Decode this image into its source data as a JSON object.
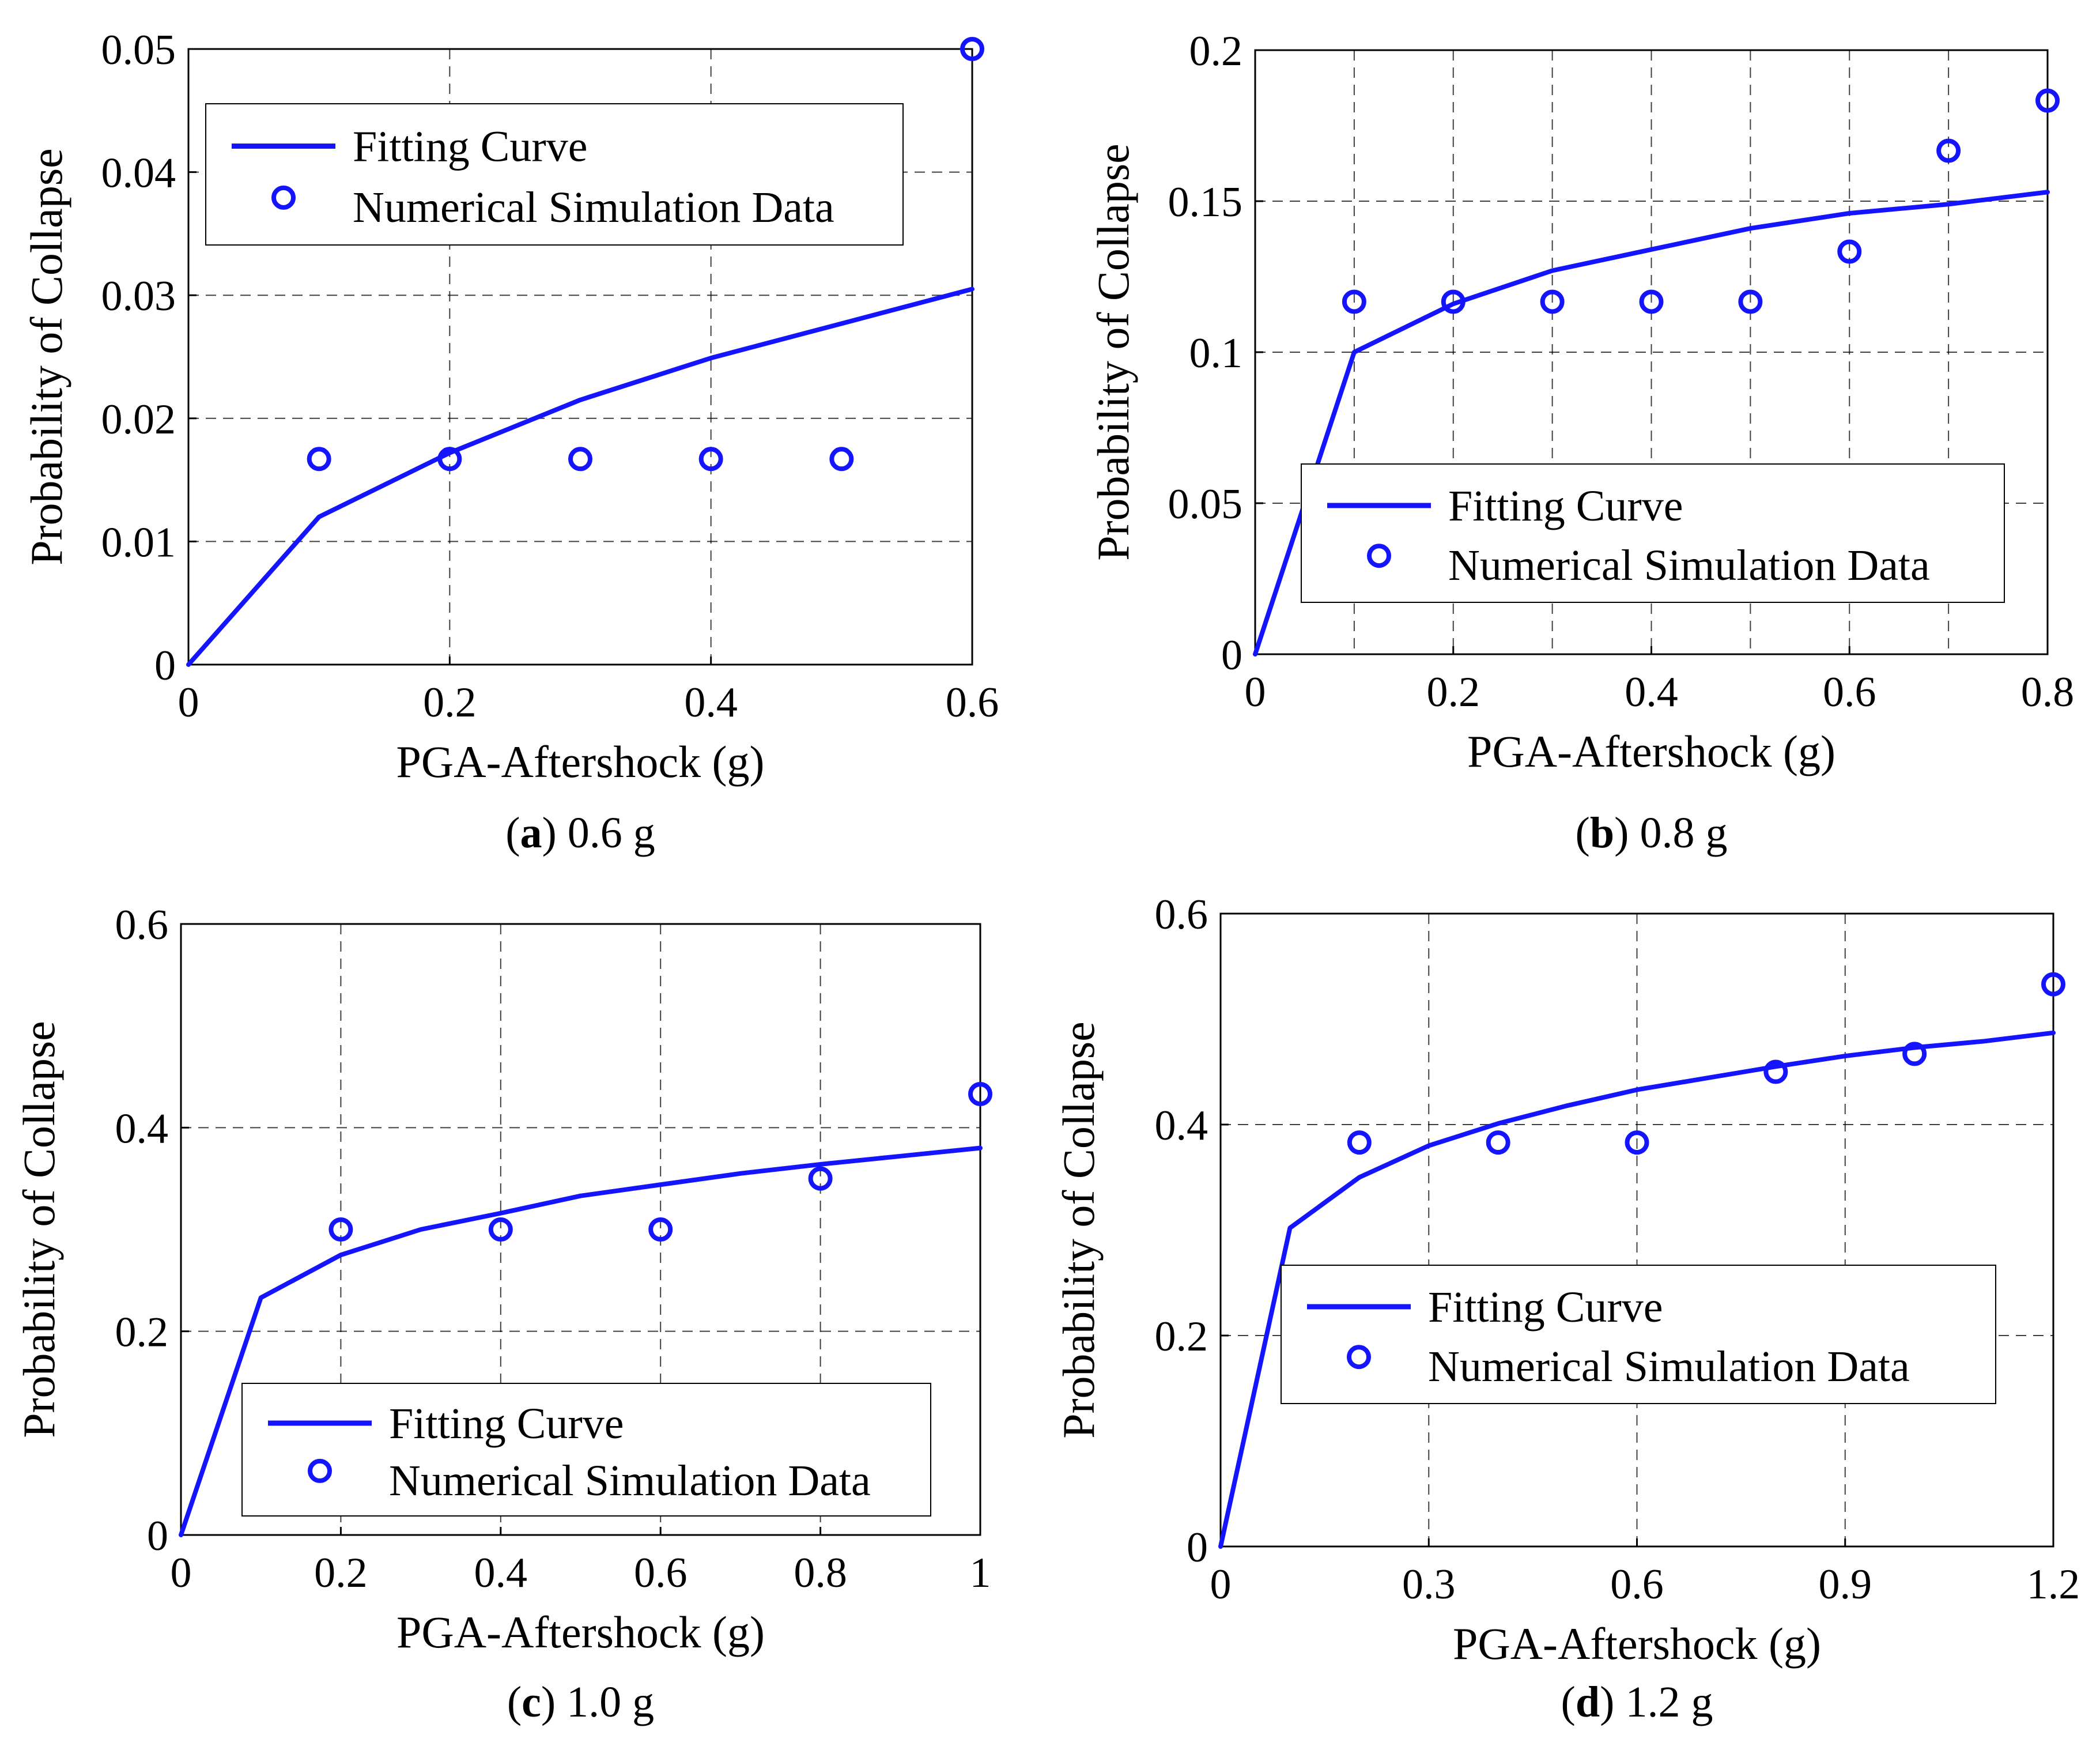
{
  "figure": {
    "colors": {
      "series": "#1414ff",
      "axis": "#000000",
      "grid": "#000000"
    },
    "legend_labels": {
      "fit": "Fitting Curve",
      "data": "Numerical Simulation Data"
    },
    "ylabel": "Probability of Collapse",
    "xlabel": "PGA-Aftershock (g)"
  },
  "chart_data": [
    {
      "id": "a",
      "type": "line",
      "caption_letter": "a",
      "caption_text": ") 0.6 g",
      "xlabel": "PGA-Aftershock (g)",
      "ylabel": "Probability of Collapse",
      "xlim": [
        0,
        0.6
      ],
      "ylim": [
        0,
        0.05
      ],
      "xticks": [
        0,
        0.2,
        0.4,
        0.6
      ],
      "xtick_labels": [
        "0",
        "0.2",
        "0.4",
        "0.6"
      ],
      "yticks": [
        0,
        0.01,
        0.02,
        0.03,
        0.04,
        0.05
      ],
      "ytick_labels": [
        "0",
        "0.01",
        "0.02",
        "0.03",
        "0.04",
        "0.05"
      ],
      "xgrid": [
        0.2,
        0.4
      ],
      "ygrid": [
        0.01,
        0.02,
        0.03,
        0.04
      ],
      "legend_position": "top-left",
      "series": [
        {
          "name": "Fitting Curve",
          "kind": "line",
          "x": [
            0,
            0.1,
            0.2,
            0.3,
            0.4,
            0.5,
            0.6
          ],
          "y": [
            0,
            0.012,
            0.0172,
            0.0215,
            0.0249,
            0.0277,
            0.0305
          ]
        },
        {
          "name": "Numerical Simulation Data",
          "kind": "marker",
          "x": [
            0.1,
            0.2,
            0.3,
            0.4,
            0.5,
            0.6
          ],
          "y": [
            0.0167,
            0.0167,
            0.0167,
            0.0167,
            0.0167,
            0.05
          ]
        }
      ]
    },
    {
      "id": "b",
      "type": "line",
      "caption_letter": "b",
      "caption_text": ") 0.8 g",
      "xlabel": "PGA-Aftershock (g)",
      "ylabel": "Probability of Collapse",
      "xlim": [
        0,
        0.8
      ],
      "ylim": [
        0,
        0.2
      ],
      "xticks": [
        0,
        0.2,
        0.4,
        0.6,
        0.8
      ],
      "xtick_labels": [
        "0",
        "0.2",
        "0.4",
        "0.6",
        "0.8"
      ],
      "yticks": [
        0,
        0.05,
        0.1,
        0.15,
        0.2
      ],
      "ytick_labels": [
        "0",
        "0.05",
        "0.1",
        "0.15",
        "0.2"
      ],
      "xgrid": [
        0.1,
        0.2,
        0.3,
        0.4,
        0.5,
        0.6,
        0.7
      ],
      "ygrid": [
        0.05,
        0.1,
        0.15
      ],
      "legend_position": "bottom-right",
      "series": [
        {
          "name": "Fitting Curve",
          "kind": "line",
          "x": [
            0,
            0.1,
            0.2,
            0.3,
            0.4,
            0.5,
            0.6,
            0.7,
            0.8
          ],
          "y": [
            0,
            0.1,
            0.116,
            0.127,
            0.134,
            0.141,
            0.146,
            0.149,
            0.153
          ]
        },
        {
          "name": "Numerical Simulation Data",
          "kind": "marker",
          "x": [
            0.1,
            0.2,
            0.3,
            0.4,
            0.5,
            0.6,
            0.7,
            0.8
          ],
          "y": [
            0.1167,
            0.1167,
            0.1167,
            0.1167,
            0.1167,
            0.1333,
            0.1667,
            0.1833
          ]
        }
      ]
    },
    {
      "id": "c",
      "type": "line",
      "caption_letter": "c",
      "caption_text": ") 1.0 g",
      "xlabel": "PGA-Aftershock (g)",
      "ylabel": "Probability of Collapse",
      "xlim": [
        0,
        1.0
      ],
      "ylim": [
        0,
        0.6
      ],
      "xticks": [
        0,
        0.2,
        0.4,
        0.6,
        0.8,
        1.0
      ],
      "xtick_labels": [
        "0",
        "0.2",
        "0.4",
        "0.6",
        "0.8",
        "1"
      ],
      "yticks": [
        0,
        0.2,
        0.4,
        0.6
      ],
      "ytick_labels": [
        "0",
        "0.2",
        "0.4",
        "0.6"
      ],
      "xgrid": [
        0.2,
        0.4,
        0.6,
        0.8
      ],
      "ygrid": [
        0.2,
        0.4
      ],
      "legend_position": "bottom-right",
      "series": [
        {
          "name": "Fitting Curve",
          "kind": "line",
          "x": [
            0,
            0.1,
            0.2,
            0.3,
            0.4,
            0.5,
            0.6,
            0.7,
            0.8,
            0.9,
            1.0
          ],
          "y": [
            0,
            0.233,
            0.275,
            0.3,
            0.316,
            0.333,
            0.344,
            0.355,
            0.364,
            0.372,
            0.38
          ]
        },
        {
          "name": "Numerical Simulation Data",
          "kind": "marker",
          "x": [
            0.2,
            0.4,
            0.6,
            0.8,
            1.0
          ],
          "y": [
            0.3,
            0.3,
            0.3,
            0.35,
            0.433
          ]
        }
      ]
    },
    {
      "id": "d",
      "type": "line",
      "caption_letter": "d",
      "caption_text": ") 1.2 g",
      "xlabel": "PGA-Aftershock (g)",
      "ylabel": "Probability of Collapse",
      "xlim": [
        0,
        1.2
      ],
      "ylim": [
        0,
        0.6
      ],
      "xticks": [
        0,
        0.3,
        0.6,
        0.9,
        1.2
      ],
      "xtick_labels": [
        "0",
        "0.3",
        "0.6",
        "0.9",
        "1.2"
      ],
      "yticks": [
        0,
        0.2,
        0.4,
        0.6
      ],
      "ytick_labels": [
        "0",
        "0.2",
        "0.4",
        "0.6"
      ],
      "xgrid": [
        0.3,
        0.6,
        0.9
      ],
      "ygrid": [
        0.2,
        0.4
      ],
      "legend_position": "bottom-right",
      "series": [
        {
          "name": "Fitting Curve",
          "kind": "line",
          "x": [
            0,
            0.1,
            0.2,
            0.3,
            0.4,
            0.5,
            0.6,
            0.7,
            0.8,
            0.9,
            1.0,
            1.1,
            1.2
          ],
          "y": [
            0,
            0.302,
            0.35,
            0.38,
            0.401,
            0.418,
            0.433,
            0.444,
            0.455,
            0.465,
            0.473,
            0.479,
            0.487
          ]
        },
        {
          "name": "Numerical Simulation Data",
          "kind": "marker",
          "x": [
            0.2,
            0.4,
            0.6,
            0.8,
            1.0,
            1.2
          ],
          "y": [
            0.383,
            0.383,
            0.383,
            0.45,
            0.467,
            0.533
          ]
        }
      ]
    }
  ]
}
